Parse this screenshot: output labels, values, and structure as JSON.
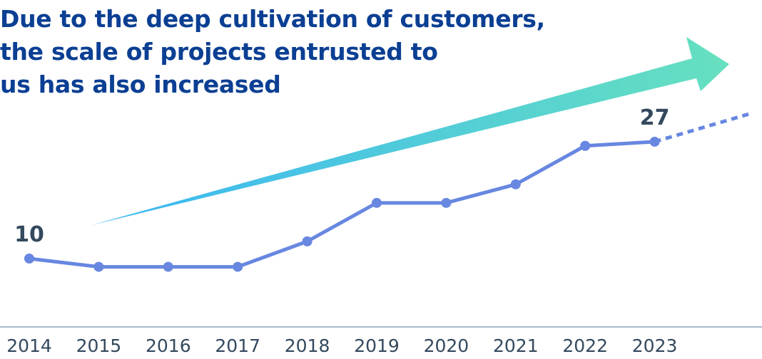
{
  "title_lines": [
    "Due to the deep cultivation of customers,",
    "the scale of projects entrusted to",
    "us has also increased"
  ],
  "chart_data": {
    "type": "line",
    "title": "Due to the deep cultivation of customers, the scale of projects entrusted to us has also increased",
    "categories": [
      "2014",
      "2015",
      "2016",
      "2017",
      "2018",
      "2019",
      "2020",
      "2021",
      "2022",
      "2023"
    ],
    "values": [
      10,
      8.8,
      8.8,
      8.8,
      12.5,
      18.1,
      18.1,
      20.8,
      26.4,
      27
    ],
    "data_labels": {
      "2014": "10",
      "2023": "27"
    },
    "xlabel": "",
    "ylabel": "",
    "grid": false,
    "legend": "none",
    "trend_extension": "dotted",
    "growth_arrow": true,
    "colors": {
      "line": "#6787e0",
      "label": "#34495e",
      "title": "#0b3f93",
      "axis": "#a9bccc",
      "arrow_start": "#3ab6f5",
      "arrow_end": "#66e0bf"
    }
  }
}
